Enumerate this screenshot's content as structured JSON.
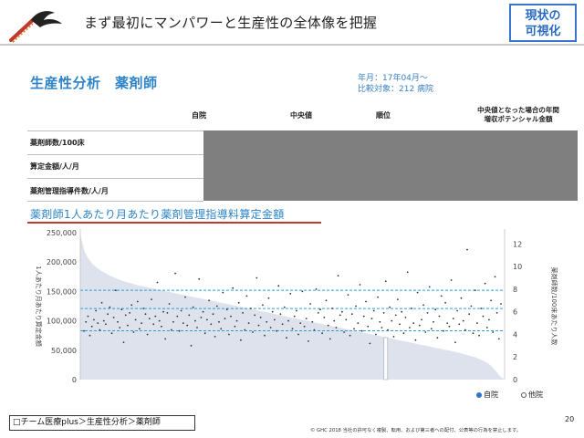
{
  "header": {
    "title": "まず最初にマンパワーと生産性の全体像を把握",
    "badge_line1": "現状の",
    "badge_line2": "可視化"
  },
  "section": {
    "title": "生産性分析　薬剤師",
    "period": "年月：17年04月～",
    "targets": "比較対象：212 病院"
  },
  "table": {
    "columns": [
      "自院",
      "中央値",
      "順位"
    ],
    "last_column": [
      "中央値となった場合の年間",
      "増収ポテンシャル金額"
    ],
    "rows": [
      "薬剤師数/100床",
      "算定金額/人/月",
      "薬剤管理指導件数/人/月"
    ]
  },
  "chart_data": {
    "type": "scatter",
    "title": "薬剤師1人あたり月あたり薬剤管理指導料算定金額",
    "ylabel": "1人あたり月あたり算定金額",
    "y2label": "薬剤師数/100床あたり人数",
    "ylim": [
      0,
      250000
    ],
    "y2lim": [
      0,
      13
    ],
    "yticks": [
      "250,000",
      "200,000",
      "150,000",
      "100,000",
      "50,000",
      "0"
    ],
    "y2ticks": [
      "12",
      "10",
      "8",
      "6",
      "4",
      "2",
      "0"
    ],
    "reference_lines": [
      152000,
      121000,
      83000
    ],
    "area_series_note": "descending sorted values, hospitals 1..212",
    "area_values": [
      248000,
      218000,
      205000,
      196000,
      190000,
      185000,
      181000,
      177000,
      174000,
      171000,
      168000,
      166000,
      164000,
      162000,
      160000,
      158500,
      157000,
      155500,
      154000,
      152500,
      151000,
      149500,
      148000,
      146500,
      145000,
      143500,
      142000,
      140500,
      139000,
      137500,
      136000,
      134500,
      133000,
      131500,
      130000,
      128500,
      127000,
      125500,
      124000,
      122500,
      121000,
      119500,
      118000,
      116500,
      115000,
      113500,
      112000,
      110500,
      109000,
      107500,
      106000,
      104500,
      103000,
      101500,
      100000,
      98500,
      97000,
      95500,
      94000,
      92500,
      91000,
      89500,
      88000,
      86500,
      85000,
      83500,
      82000,
      80500,
      79000,
      77500,
      76000,
      74500,
      73000,
      71500,
      70000,
      68500,
      67000,
      65500,
      64000,
      62500,
      61000,
      59500,
      58000,
      56500,
      55000,
      53500,
      52000,
      50500,
      49000,
      47500,
      46000,
      44000,
      42000,
      40000,
      38000,
      35000,
      32000,
      28000,
      22000,
      14000,
      5000,
      0
    ],
    "series": [
      {
        "name": "自院",
        "type": "highlight-bar",
        "index": 0.72
      },
      {
        "name": "他院",
        "type": "points"
      }
    ],
    "points_y2": [
      4.3,
      5.1,
      5.6,
      3.9,
      4.7,
      5.3,
      6.1,
      5.0,
      4.4,
      6.8,
      5.2,
      4.9,
      5.8,
      6.4,
      4.1,
      5.5,
      7.9,
      5.1,
      4.6,
      6.2,
      3.3,
      5.7,
      4.8,
      5.9,
      6.6,
      4.2,
      5.3,
      6.9,
      4.5,
      5.0,
      6.3,
      5.8,
      4.0,
      5.4,
      7.1,
      4.9,
      5.6,
      8.6,
      5.2,
      4.7,
      6.0,
      3.6,
      5.9,
      6.7,
      4.4,
      5.1,
      9.4,
      5.6,
      4.3,
      6.1,
      5.0,
      7.3,
      4.8,
      5.7,
      3.0,
      6.4,
      5.2,
      4.6,
      8.9,
      5.5,
      6.0,
      4.1,
      5.3,
      7.0,
      4.9,
      5.8,
      3.8,
      6.5,
      5.1,
      4.5,
      7.7,
      5.4,
      6.2,
      4.0,
      5.6,
      8.1,
      4.7,
      5.2,
      6.8,
      3.5,
      5.9,
      4.4,
      7.4,
      5.0,
      6.3,
      4.2,
      5.7,
      9.0,
      4.8,
      5.5,
      6.6,
      3.9,
      5.1,
      7.2,
      4.6,
      6.0,
      5.3,
      4.3,
      8.3,
      5.8,
      4.9,
      6.4,
      3.7,
      5.2,
      7.6,
      4.5,
      5.6,
      6.1,
      4.0,
      5.0,
      7.8,
      4.7,
      5.4,
      3.4,
      6.7,
      5.1,
      4.4,
      8.0,
      5.9,
      6.2,
      4.1,
      5.5,
      7.0,
      4.8,
      3.6,
      6.3,
      5.2,
      4.6,
      9.2,
      5.7,
      6.0,
      4.2,
      5.3,
      7.5,
      3.9,
      5.8,
      4.5,
      6.5,
      5.0,
      8.4,
      4.3,
      5.6,
      6.9,
      4.7,
      3.2,
      5.4,
      6.1,
      4.0,
      7.3,
      5.1,
      4.6,
      5.9,
      8.7,
      4.4,
      6.4,
      5.2,
      3.8,
      5.7,
      7.1,
      4.9,
      6.0,
      4.1,
      5.5,
      9.5,
      4.6,
      6.3,
      5.0,
      3.5,
      7.7,
      4.8,
      5.3,
      6.6,
      4.2,
      5.9,
      8.2,
      4.5,
      5.1,
      6.2,
      3.7,
      5.6,
      7.4,
      4.3,
      6.8,
      5.0,
      4.7,
      8.8,
      5.4,
      3.3,
      6.1,
      4.9,
      7.2,
      5.2,
      4.4,
      11.5,
      5.8,
      6.5,
      4.1,
      7.9,
      5.0,
      3.9,
      6.3,
      5.6,
      8.5,
      4.6,
      5.3,
      7.0,
      4.2,
      9.1,
      5.9,
      3.6,
      6.7
    ]
  },
  "legend": {
    "own": "自院",
    "other": "他院",
    "own_color": "#2e75c8",
    "other_color": "#ffffff"
  },
  "footer": {
    "breadcrumb": "□チーム医療plus＞生産性分析＞薬剤師",
    "page_number": "20",
    "copyright": "© GHC 2018 当社の許可なく複製、転用、および第三者への配付、公表等の行為を禁止します。"
  }
}
